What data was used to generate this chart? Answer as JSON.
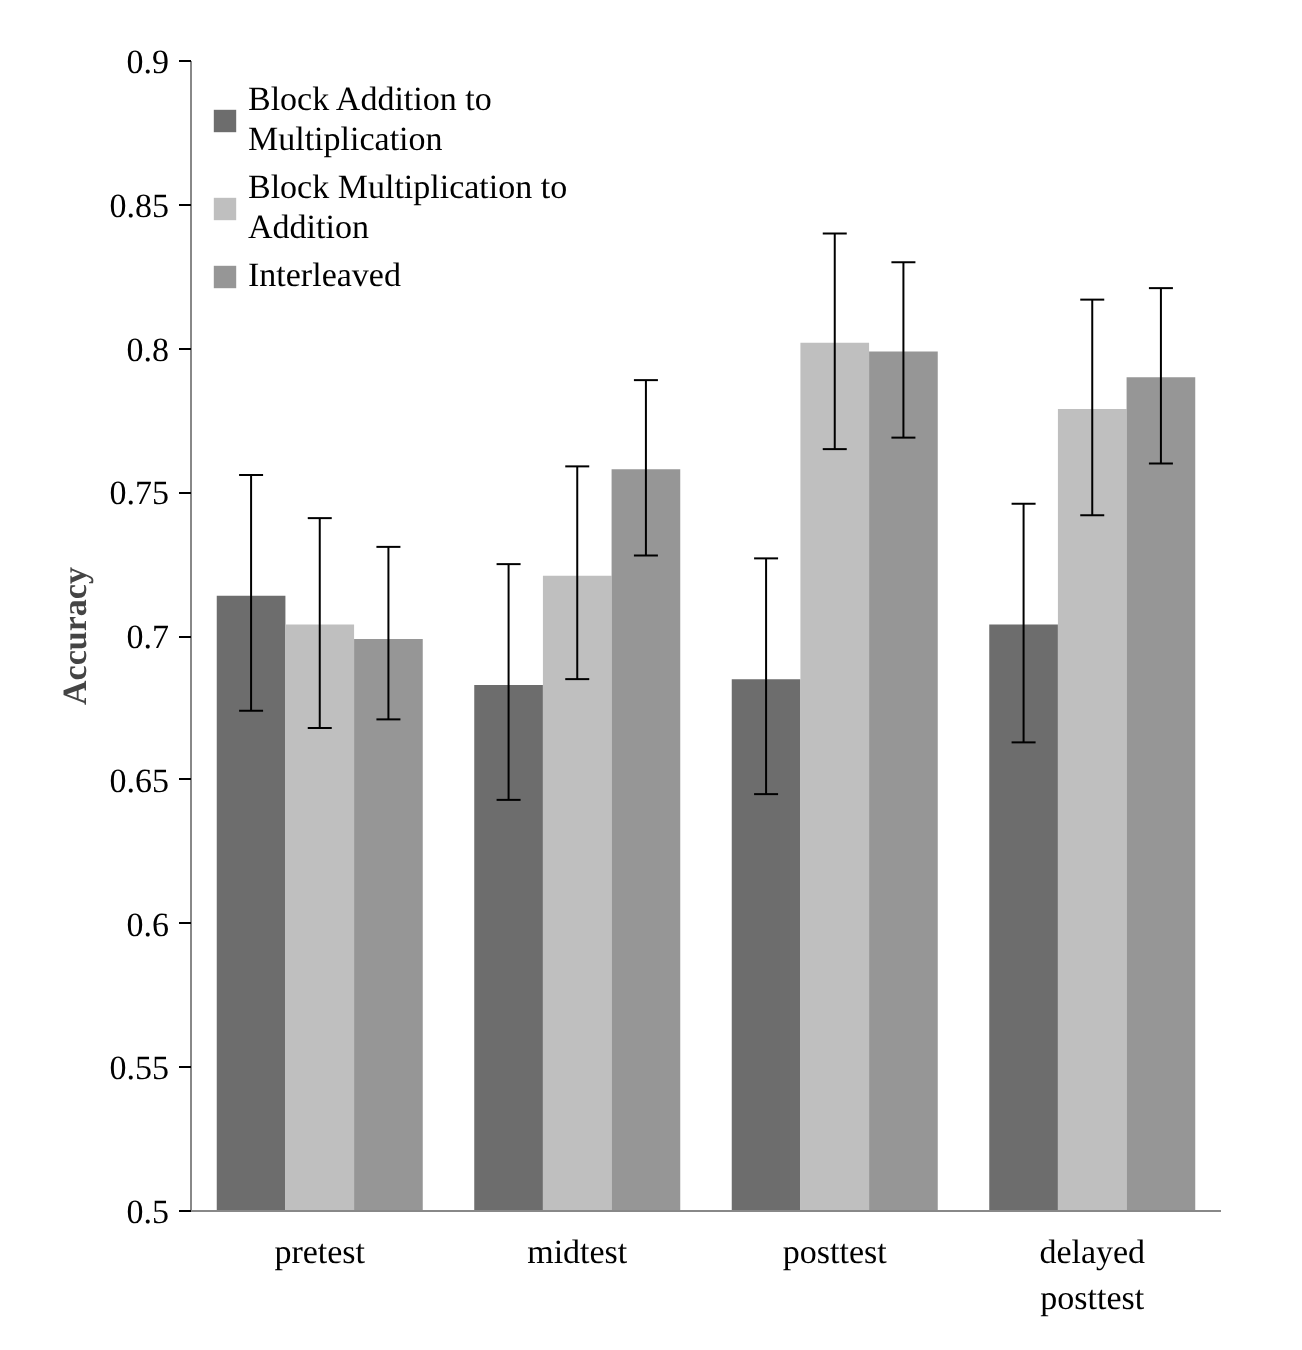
{
  "chart_data": {
    "type": "bar",
    "ylabel": "Accuracy",
    "categories": [
      "pretest",
      "midtest",
      "posttest",
      "delayed posttest"
    ],
    "series": [
      {
        "name": "Block Addition to Multiplication",
        "color": "#6d6d6d",
        "values": [
          0.714,
          0.683,
          0.685,
          0.704
        ],
        "errors": [
          [
            0.674,
            0.756
          ],
          [
            0.643,
            0.725
          ],
          [
            0.645,
            0.727
          ],
          [
            0.663,
            0.746
          ]
        ]
      },
      {
        "name": "Block Multiplication to Addition",
        "color": "#bfbfbf",
        "values": [
          0.704,
          0.721,
          0.802,
          0.779
        ],
        "errors": [
          [
            0.668,
            0.741
          ],
          [
            0.685,
            0.759
          ],
          [
            0.765,
            0.84
          ],
          [
            0.742,
            0.817
          ]
        ]
      },
      {
        "name": "Interleaved",
        "color": "#969696",
        "values": [
          0.699,
          0.758,
          0.799,
          0.79
        ],
        "errors": [
          [
            0.671,
            0.731
          ],
          [
            0.728,
            0.789
          ],
          [
            0.769,
            0.83
          ],
          [
            0.76,
            0.821
          ]
        ]
      }
    ],
    "ylim": [
      0.5,
      0.9
    ],
    "yticks": [
      0.5,
      0.55,
      0.6,
      0.65,
      0.7,
      0.75,
      0.8,
      0.85,
      0.9
    ],
    "grid": false,
    "legend": "top left"
  }
}
